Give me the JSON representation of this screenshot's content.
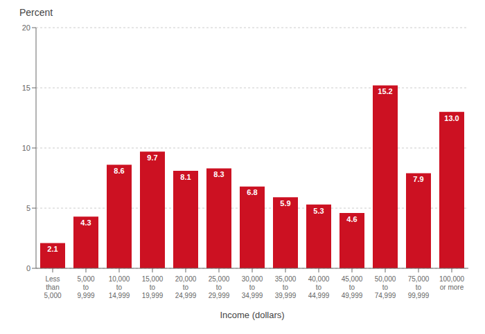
{
  "chart_data": {
    "type": "bar",
    "ylabel": "Percent",
    "xlabel": "Income (dollars)",
    "categories": [
      "Less\nthan\n5,000",
      "5,000\nto\n9,999",
      "10,000\nto\n14,999",
      "15,000\nto\n19,999",
      "20,000\nto\n24,999",
      "25,000\nto\n29,999",
      "30,000\nto\n34,999",
      "35,000\nto\n39,999",
      "40,000\nto\n44,999",
      "45,000\nto\n49,999",
      "50,000\nto\n74,999",
      "75,000\nto\n99,999",
      "100,000\nor more"
    ],
    "values": [
      2.1,
      4.3,
      8.6,
      9.7,
      8.1,
      8.3,
      6.8,
      5.9,
      5.3,
      4.6,
      15.2,
      7.9,
      13.0
    ],
    "value_labels": [
      "2.1",
      "4.3",
      "8.6",
      "9.7",
      "8.1",
      "8.3",
      "6.8",
      "5.9",
      "5.3",
      "4.6",
      "15.2",
      "7.9",
      "13.0"
    ],
    "color": "#cc1122",
    "ylim": [
      0,
      20
    ],
    "yticks": [
      0,
      5,
      10,
      15,
      20
    ],
    "grid": true,
    "data_labels": true
  }
}
